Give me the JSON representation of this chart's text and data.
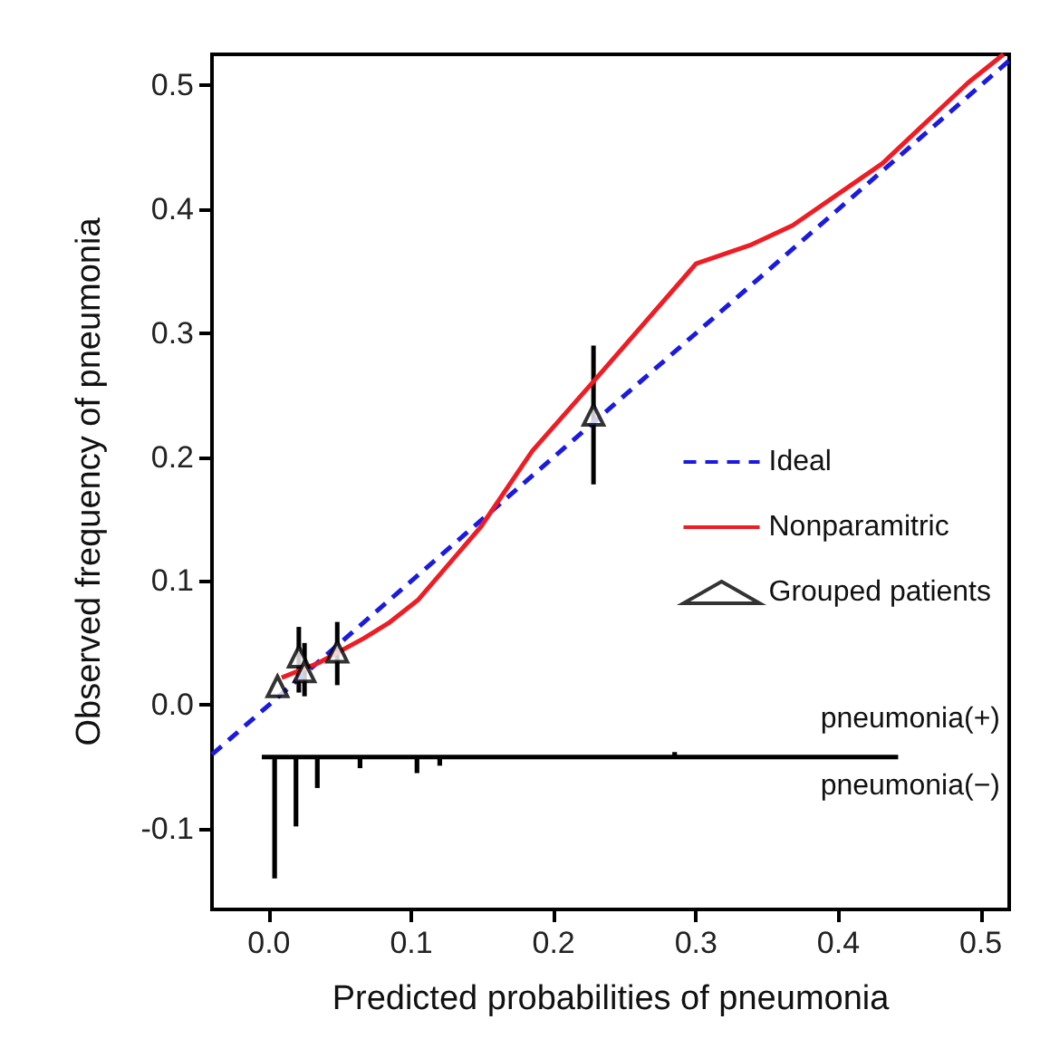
{
  "chart_data": {
    "type": "line",
    "xlabel": "Predicted probabilities of pneumonia",
    "ylabel": "Observed frequency of pneumonia",
    "xlim": [
      -0.04,
      0.52
    ],
    "ylim": [
      -0.165,
      0.525
    ],
    "xticks": [
      {
        "value": 0,
        "label": "0.0"
      },
      0.1,
      0.2,
      0.3,
      0.4,
      0.5
    ],
    "yticks": [
      -0.1,
      {
        "value": 0,
        "label": "0.0"
      },
      0.1,
      0.2,
      0.3,
      0.4,
      0.5
    ],
    "grid": false,
    "legend": "right",
    "annotations": [
      "pneumonia(+)",
      "pneumonia(−)"
    ],
    "series": [
      {
        "name": "Ideal",
        "color": "#1a1ae0",
        "line_style": "dashed",
        "marker": "none",
        "x": [
          -0.04,
          0.52
        ],
        "values": [
          -0.04,
          0.52
        ]
      },
      {
        "name": "Nonparamitric",
        "color": "#f01c24",
        "line_style": "solid",
        "marker": "none",
        "x": [
          0.009,
          0.035,
          0.067,
          0.084,
          0.105,
          0.149,
          0.185,
          0.228,
          0.3,
          0.338,
          0.368,
          0.431,
          0.491,
          0.516
        ],
        "values": [
          0.022,
          0.034,
          0.054,
          0.066,
          0.085,
          0.144,
          0.205,
          0.261,
          0.356,
          0.371,
          0.387,
          0.437,
          0.502,
          0.525
        ]
      },
      {
        "name": "Grouped patients",
        "type": "scatter",
        "color": "#000000",
        "marker": "triangle",
        "x": [
          0.006,
          0.021,
          0.025,
          0.048,
          0.228
        ],
        "values": [
          0.015,
          0.039,
          0.027,
          0.043,
          0.234
        ],
        "errors": [
          null,
          [
            0.01,
            0.063
          ],
          [
            0.007,
            0.05
          ],
          [
            0.016,
            0.067
          ],
          [
            0.178,
            0.29
          ]
        ]
      },
      {
        "type": "line",
        "color": "#000000",
        "line_style": "solid",
        "marker": "none",
        "x": [
          -0.005,
          0.442
        ],
        "values": [
          -0.042,
          -0.042
        ]
      },
      {
        "type": "bar",
        "color": "#000000",
        "x": [
          0.004,
          0.019,
          0.034,
          0.064,
          0.104,
          0.12,
          0.285
        ],
        "base": [
          -0.042,
          -0.042,
          -0.042,
          -0.042,
          -0.042,
          -0.042,
          -0.042
        ],
        "values": [
          -0.098,
          -0.056,
          -0.025,
          -0.009,
          -0.013,
          -0.007,
          0.004
        ]
      }
    ]
  }
}
